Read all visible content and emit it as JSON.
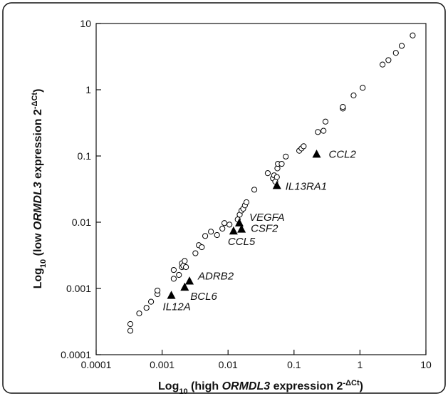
{
  "chart_data": {
    "type": "scatter",
    "x_scale": "log",
    "y_scale": "log",
    "xlim": [
      0.0001,
      10
    ],
    "ylim": [
      0.0001,
      10
    ],
    "x_ticks": [
      "0.0001",
      "0.001",
      "0.01",
      "0.1",
      "1",
      "10"
    ],
    "y_ticks": [
      "0.0001",
      "0.001",
      "0.01",
      "0.1",
      "1",
      "10"
    ],
    "xlabel": {
      "prefix": "Log",
      "sub": "10",
      "before_gene": " (high ",
      "gene": "ORMDL3",
      "after_gene": " expression 2",
      "sup": "-ΔCt",
      "close": ")"
    },
    "ylabel": {
      "prefix": "Log",
      "sub": "10",
      "before_gene": " (low ",
      "gene": "ORMDL3",
      "after_gene": " expression 2",
      "sup": "-ΔCt",
      "close": ")"
    },
    "grid": false,
    "series": [
      {
        "marker": "open-circle",
        "points": [
          [
            0.00033,
            0.00023
          ],
          [
            0.00033,
            0.00029
          ],
          [
            0.00045,
            0.00042
          ],
          [
            0.00058,
            0.00051
          ],
          [
            0.00068,
            0.00063
          ],
          [
            0.00085,
            0.00082
          ],
          [
            0.00085,
            0.00093
          ],
          [
            0.0015,
            0.0014
          ],
          [
            0.0015,
            0.0019
          ],
          [
            0.0018,
            0.0016
          ],
          [
            0.002,
            0.0021
          ],
          [
            0.002,
            0.0024
          ],
          [
            0.0021,
            0.0022
          ],
          [
            0.0022,
            0.0026
          ],
          [
            0.0023,
            0.0021
          ],
          [
            0.0032,
            0.0034
          ],
          [
            0.0036,
            0.0045
          ],
          [
            0.004,
            0.0042
          ],
          [
            0.0045,
            0.0062
          ],
          [
            0.0055,
            0.0072
          ],
          [
            0.0068,
            0.0064
          ],
          [
            0.0082,
            0.008
          ],
          [
            0.0088,
            0.0097
          ],
          [
            0.0105,
            0.0092
          ],
          [
            0.014,
            0.011
          ],
          [
            0.015,
            0.013
          ],
          [
            0.016,
            0.015
          ],
          [
            0.017,
            0.016
          ],
          [
            0.018,
            0.018
          ],
          [
            0.019,
            0.02
          ],
          [
            0.025,
            0.031
          ],
          [
            0.04,
            0.055
          ],
          [
            0.048,
            0.046
          ],
          [
            0.05,
            0.051
          ],
          [
            0.052,
            0.041
          ],
          [
            0.055,
            0.048
          ],
          [
            0.056,
            0.065
          ],
          [
            0.057,
            0.076
          ],
          [
            0.065,
            0.076
          ],
          [
            0.075,
            0.098
          ],
          [
            0.12,
            0.12
          ],
          [
            0.13,
            0.13
          ],
          [
            0.14,
            0.14
          ],
          [
            0.23,
            0.23
          ],
          [
            0.28,
            0.24
          ],
          [
            0.3,
            0.33
          ],
          [
            0.55,
            0.52
          ],
          [
            0.55,
            0.55
          ],
          [
            0.8,
            0.82
          ],
          [
            1.1,
            1.07
          ],
          [
            2.2,
            2.4
          ],
          [
            2.7,
            2.8
          ],
          [
            3.5,
            3.6
          ],
          [
            4.3,
            4.6
          ],
          [
            6.3,
            6.6
          ]
        ]
      },
      {
        "marker": "filled-triangle",
        "points": [
          {
            "label": "CCL2",
            "x": 0.22,
            "y": 0.107
          },
          {
            "label": "IL13RA1",
            "x": 0.055,
            "y": 0.036
          },
          {
            "label": "VEGFA",
            "x": 0.0148,
            "y": 0.0098
          },
          {
            "label": "CSF2",
            "x": 0.016,
            "y": 0.0079
          },
          {
            "label": "CCL5",
            "x": 0.0121,
            "y": 0.0074
          },
          {
            "label": "ADRB2",
            "x": 0.0026,
            "y": 0.0013
          },
          {
            "label": "BCL6",
            "x": 0.0022,
            "y": 0.00105
          },
          {
            "label": "IL12A",
            "x": 0.00138,
            "y": 0.00079
          }
        ]
      }
    ],
    "colors": {
      "frame": "#111111",
      "marker": "#000000",
      "background": "#ffffff"
    }
  }
}
